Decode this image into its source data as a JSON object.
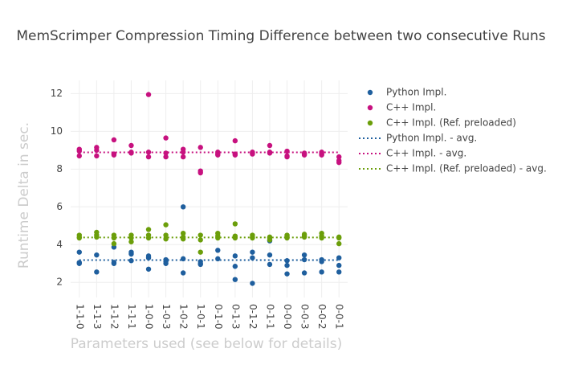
{
  "chart_data": {
    "type": "scatter",
    "title": "MemScrimper Compression Timing Difference between two consecutive Runs",
    "x_label": "Parameters used (see below for details)",
    "y_label": "Runtime Delta in sec.",
    "categories": [
      "1-1-0",
      "1-1-3",
      "1-1-2",
      "1-1-1",
      "1-0-0",
      "1-0-3",
      "1-0-2",
      "1-0-1",
      "0-1-0",
      "0-1-3",
      "0-1-2",
      "0-1-1",
      "0-0-0",
      "0-0-3",
      "0-0-2",
      "0-0-1"
    ],
    "ylim": [
      1.2,
      12.7
    ],
    "yticks": [
      2,
      4,
      6,
      8,
      10,
      12
    ],
    "grid": true,
    "series": [
      {
        "name": "Python Impl.",
        "type": "scatter",
        "color": "#1f5f9e",
        "x": [
          "1-1-0",
          "1-1-0",
          "1-1-0",
          "1-1-3",
          "1-1-3",
          "1-1-2",
          "1-1-2",
          "1-1-2",
          "1-1-1",
          "1-1-1",
          "1-1-1",
          "1-0-0",
          "1-0-0",
          "1-0-0",
          "1-0-3",
          "1-0-3",
          "1-0-3",
          "1-0-2",
          "1-0-2",
          "1-0-2",
          "1-0-1",
          "1-0-1",
          "1-0-1",
          "0-1-0",
          "0-1-0",
          "0-1-3",
          "0-1-3",
          "0-1-3",
          "0-1-2",
          "0-1-2",
          "0-1-2",
          "0-1-1",
          "0-1-1",
          "0-1-1",
          "0-0-0",
          "0-0-0",
          "0-0-0",
          "0-0-3",
          "0-0-3",
          "0-0-3",
          "0-0-2",
          "0-0-2",
          "0-0-2",
          "0-0-1",
          "0-0-1",
          "0-0-1"
        ],
        "values": [
          3.6,
          3.05,
          3.0,
          3.45,
          2.55,
          3.87,
          3.06,
          3.0,
          3.6,
          3.5,
          3.15,
          3.4,
          3.3,
          2.7,
          3.2,
          3.1,
          3.0,
          6.0,
          3.25,
          2.5,
          3.1,
          3.0,
          2.95,
          3.7,
          3.25,
          3.4,
          2.85,
          2.15,
          3.6,
          3.3,
          1.95,
          4.2,
          3.45,
          2.95,
          3.15,
          2.9,
          2.45,
          3.45,
          3.2,
          2.5,
          3.2,
          3.1,
          2.55,
          3.3,
          2.9,
          2.55
        ]
      },
      {
        "name": "C++ Impl.",
        "type": "scatter",
        "color": "#c7117f",
        "x": [
          "1-1-0",
          "1-1-0",
          "1-1-0",
          "1-1-3",
          "1-1-3",
          "1-1-3",
          "1-1-2",
          "1-1-2",
          "1-1-2",
          "1-1-1",
          "1-1-1",
          "1-1-1",
          "1-0-0",
          "1-0-0",
          "1-0-0",
          "1-0-3",
          "1-0-3",
          "1-0-3",
          "1-0-2",
          "1-0-2",
          "1-0-2",
          "1-0-1",
          "1-0-1",
          "1-0-1",
          "0-1-0",
          "0-1-0",
          "0-1-0",
          "0-1-3",
          "0-1-3",
          "0-1-3",
          "0-1-2",
          "0-1-2",
          "0-1-2",
          "0-1-1",
          "0-1-1",
          "0-1-1",
          "0-0-0",
          "0-0-0",
          "0-0-0",
          "0-0-3",
          "0-0-3",
          "0-0-3",
          "0-0-2",
          "0-0-2",
          "0-0-2",
          "0-0-1",
          "0-0-1",
          "0-0-1"
        ],
        "values": [
          9.05,
          8.95,
          8.7,
          9.15,
          9.0,
          8.7,
          9.55,
          8.8,
          8.75,
          9.25,
          8.9,
          8.85,
          11.95,
          8.9,
          8.65,
          9.65,
          8.85,
          8.65,
          9.05,
          8.9,
          8.65,
          9.15,
          7.9,
          7.8,
          8.9,
          8.8,
          8.75,
          9.5,
          8.8,
          8.75,
          8.9,
          8.85,
          8.8,
          9.25,
          8.9,
          8.85,
          8.95,
          8.7,
          8.65,
          8.85,
          8.8,
          8.75,
          8.9,
          8.8,
          8.75,
          8.65,
          8.45,
          8.35
        ]
      },
      {
        "name": "C++ Impl. (Ref. preloaded)",
        "type": "scatter",
        "color": "#6b9e0a",
        "x": [
          "1-1-0",
          "1-1-0",
          "1-1-0",
          "1-1-3",
          "1-1-3",
          "1-1-3",
          "1-1-2",
          "1-1-2",
          "1-1-2",
          "1-1-1",
          "1-1-1",
          "1-1-1",
          "1-0-0",
          "1-0-0",
          "1-0-0",
          "1-0-3",
          "1-0-3",
          "1-0-3",
          "1-0-2",
          "1-0-2",
          "1-0-2",
          "1-0-1",
          "1-0-1",
          "1-0-1",
          "0-1-0",
          "0-1-0",
          "0-1-0",
          "0-1-3",
          "0-1-3",
          "0-1-3",
          "0-1-2",
          "0-1-2",
          "0-1-2",
          "0-1-1",
          "0-1-1",
          "0-1-1",
          "0-0-0",
          "0-0-0",
          "0-0-0",
          "0-0-3",
          "0-0-3",
          "0-0-3",
          "0-0-2",
          "0-0-2",
          "0-0-2",
          "0-0-1",
          "0-0-1",
          "0-0-1"
        ],
        "values": [
          4.5,
          4.4,
          4.35,
          4.65,
          4.5,
          4.4,
          4.5,
          4.35,
          4.05,
          4.5,
          4.35,
          4.15,
          4.8,
          4.5,
          4.35,
          5.05,
          4.5,
          4.3,
          4.6,
          4.4,
          4.3,
          4.5,
          4.25,
          3.6,
          4.6,
          4.45,
          4.35,
          5.1,
          4.45,
          4.35,
          4.5,
          4.4,
          4.35,
          4.4,
          4.35,
          4.25,
          4.5,
          4.45,
          4.35,
          4.55,
          4.45,
          4.4,
          4.6,
          4.45,
          4.35,
          4.4,
          4.35,
          4.05
        ]
      },
      {
        "name": "Python Impl. - avg.",
        "type": "line",
        "color": "#1f5f9e",
        "x": [
          "1-1-0",
          "0-0-1"
        ],
        "values": [
          3.18,
          3.18
        ]
      },
      {
        "name": "C++ Impl. - avg.",
        "type": "line",
        "color": "#c7117f",
        "x": [
          "1-1-0",
          "0-0-1"
        ],
        "values": [
          8.89,
          8.89
        ]
      },
      {
        "name": "C++ Impl. (Ref. preloaded) - avg.",
        "type": "line",
        "color": "#6b9e0a",
        "x": [
          "1-1-0",
          "0-0-1"
        ],
        "values": [
          4.38,
          4.38
        ]
      }
    ]
  }
}
